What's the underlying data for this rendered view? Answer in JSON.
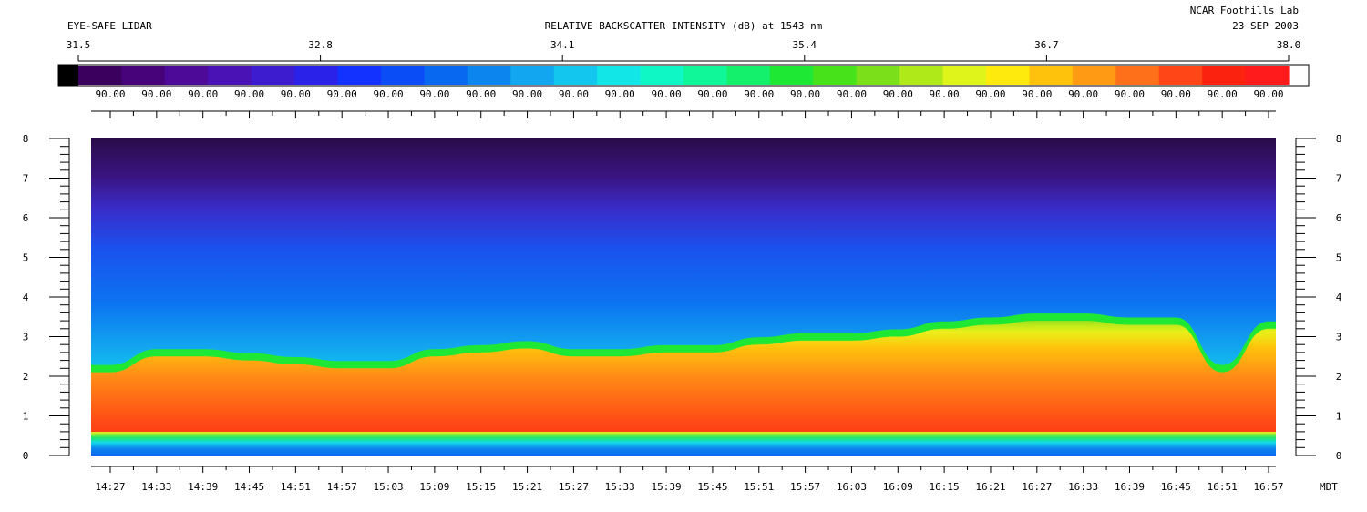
{
  "header": {
    "left_title": "EYE-SAFE LIDAR",
    "center_title": "RELATIVE BACKSCATTER INTENSITY (dB) at 1543 nm",
    "org": "NCAR Foothills Lab",
    "date": "23 SEP 2003"
  },
  "chart_data": {
    "type": "heatmap",
    "title": "RELATIVE BACKSCATTER INTENSITY (dB) at 1543 nm",
    "colorbar": {
      "range": [
        31.5,
        38.0
      ],
      "ticks": [
        "31.5",
        "32.8",
        "34.1",
        "35.4",
        "36.7",
        "38.0"
      ],
      "bin_label": "90.00",
      "bin_count": 26,
      "colors": [
        "#3b005e",
        "#46037a",
        "#4d0a98",
        "#4a12b4",
        "#3d1ccf",
        "#2a22e8",
        "#1432ff",
        "#0a4cf6",
        "#0868ef",
        "#0c86ee",
        "#11a6ef",
        "#13c6ee",
        "#12e6e7",
        "#10f7c6",
        "#10f79a",
        "#14f06c",
        "#1fe834",
        "#48e21a",
        "#7be01a",
        "#b0e91a",
        "#def41b",
        "#ffea0d",
        "#ffc20c",
        "#ff9a14",
        "#ff701a",
        "#ff4617",
        "#fb2310",
        "#ff1b1b"
      ]
    },
    "y_axis": {
      "label": "",
      "range": [
        0,
        8
      ],
      "ticks": [
        "0",
        "1",
        "2",
        "3",
        "4",
        "5",
        "6",
        "7",
        "8"
      ]
    },
    "x_axis": {
      "label": "MDT",
      "ticks": [
        "14:27",
        "14:33",
        "14:39",
        "14:45",
        "14:51",
        "14:57",
        "15:03",
        "15:09",
        "15:15",
        "15:21",
        "15:27",
        "15:33",
        "15:39",
        "15:45",
        "15:51",
        "15:57",
        "16:03",
        "16:09",
        "16:15",
        "16:21",
        "16:27",
        "16:33",
        "16:39",
        "16:45",
        "16:51",
        "16:57"
      ]
    },
    "boundary_layer_top": {
      "times": [
        "14:27",
        "14:33",
        "14:39",
        "14:45",
        "14:51",
        "14:57",
        "15:03",
        "15:09",
        "15:15",
        "15:21",
        "15:27",
        "15:33",
        "15:39",
        "15:45",
        "15:51",
        "15:57",
        "16:03",
        "16:09",
        "16:15",
        "16:21",
        "16:27",
        "16:33",
        "16:39",
        "16:45",
        "16:51",
        "16:57"
      ],
      "heights": [
        2.1,
        2.5,
        2.5,
        2.4,
        2.3,
        2.2,
        2.2,
        2.5,
        2.6,
        2.7,
        2.5,
        2.5,
        2.6,
        2.6,
        2.8,
        2.9,
        2.9,
        3.0,
        3.2,
        3.3,
        3.4,
        3.4,
        3.3,
        3.3,
        2.1,
        3.2
      ]
    }
  }
}
